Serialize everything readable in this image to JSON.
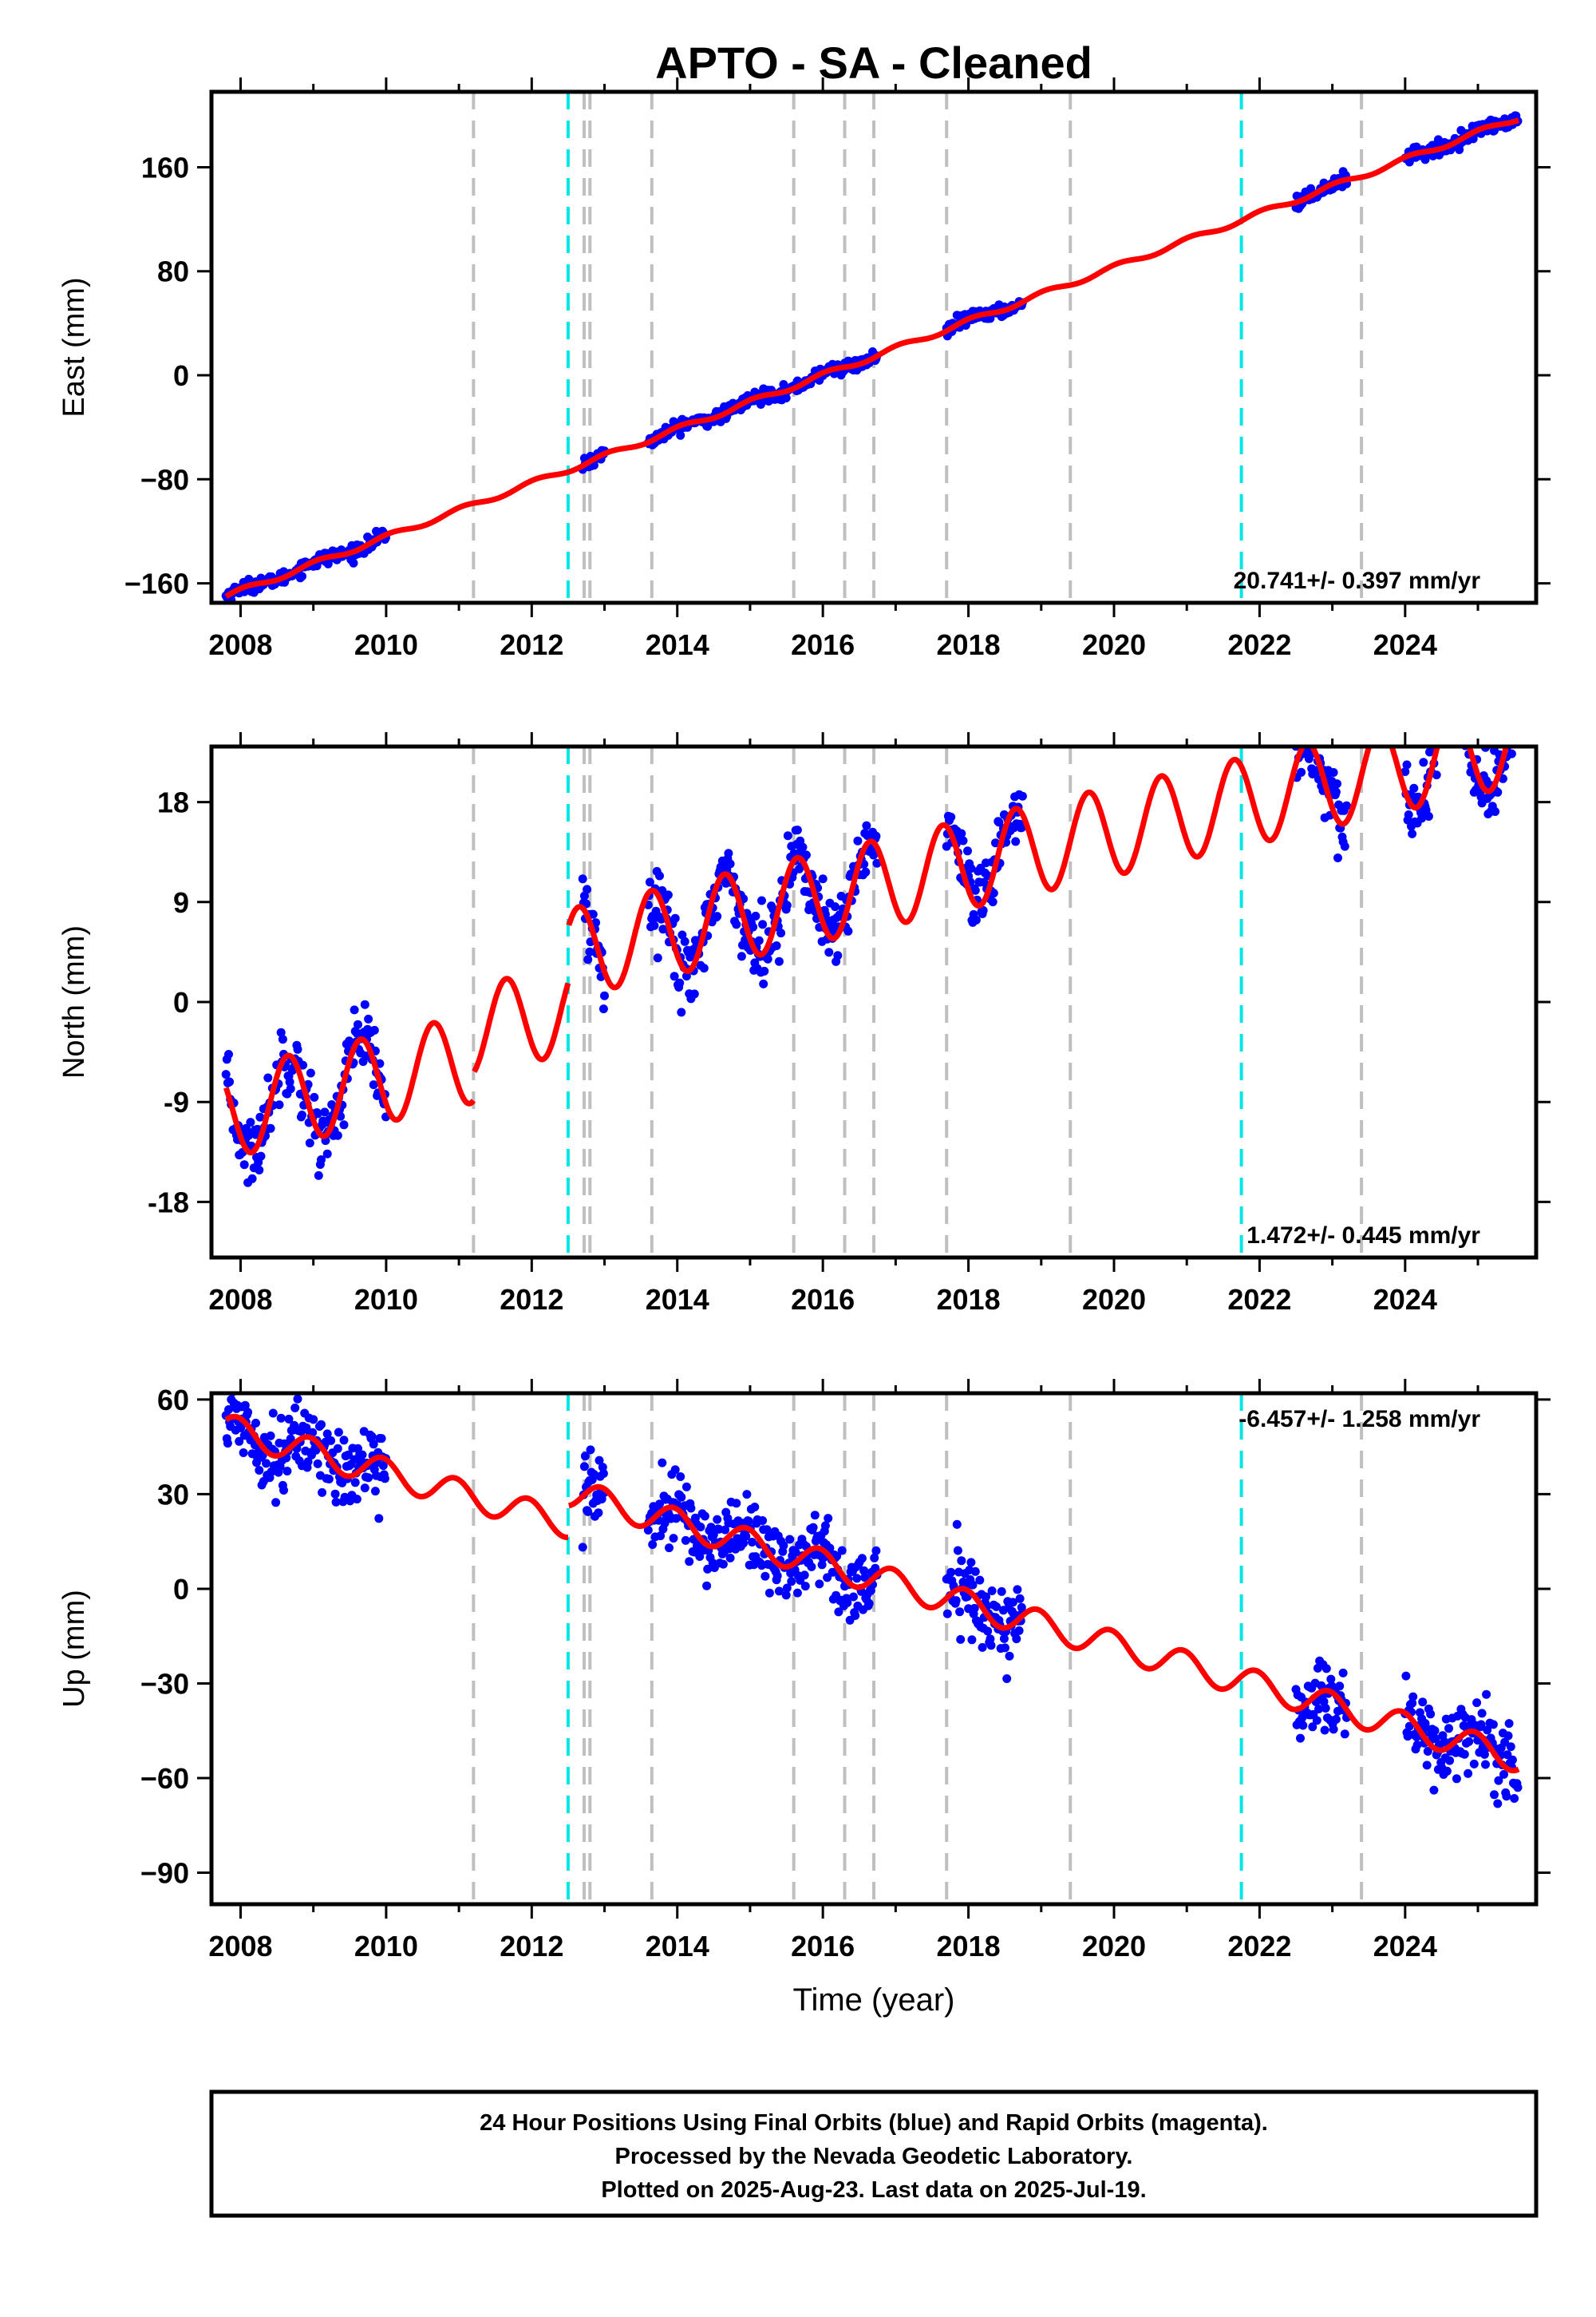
{
  "title": "APTO  - SA - Cleaned",
  "xlabel": "Time (year)",
  "footer": {
    "line1": "24 Hour Positions Using Final Orbits (blue) and Rapid Orbits (magenta).",
    "line2": "Processed by the Nevada Geodetic Laboratory.",
    "line3": "Plotted on 2025-Aug-23. Last data on 2025-Jul-19."
  },
  "colors": {
    "data_points": "#0000ff",
    "model_line": "#ff0000",
    "antenna_change_lines": "#00e5e5",
    "event_lines": "#bfbfbf",
    "frame": "#000000"
  },
  "chart_data": [
    {
      "type": "scatter",
      "name": "east",
      "ylabel": "East (mm)",
      "xlim": [
        2007.6,
        2025.8
      ],
      "ylim": [
        -175,
        218
      ],
      "xticks": [
        2008,
        2010,
        2012,
        2014,
        2016,
        2018,
        2020,
        2022,
        2024
      ],
      "yticks": [
        -160,
        -80,
        0,
        80,
        160
      ],
      "ytick_labels": [
        "−160",
        "−80",
        "0",
        "80",
        "160"
      ],
      "rate_label": "20.741+/- 0.397 mm/yr",
      "rate_position": "bottom-right",
      "cyan_lines": [
        2012.5,
        2021.75
      ],
      "gray_lines": [
        2011.2,
        2012.72,
        2012.8,
        2013.65,
        2015.6,
        2016.3,
        2016.7,
        2017.7,
        2019.4,
        2023.4
      ],
      "data_segments": [
        [
          2007.8,
          2010.0
        ],
        [
          2012.7,
          2013.0
        ],
        [
          2013.6,
          2016.75
        ],
        [
          2017.7,
          2018.75
        ],
        [
          2022.5,
          2023.2
        ],
        [
          2024.0,
          2025.55
        ]
      ],
      "model": {
        "t0": 2016.0,
        "v0": 0.0,
        "trend": 20.741,
        "annual_amp": 2.0,
        "annual_phase": 0.2,
        "offsets": []
      },
      "noise": 2.5
    },
    {
      "type": "scatter",
      "name": "north",
      "ylabel": "North (mm)",
      "xlim": [
        2007.6,
        2025.8
      ],
      "ylim": [
        -23,
        23
      ],
      "xticks": [
        2008,
        2010,
        2012,
        2014,
        2016,
        2018,
        2020,
        2022,
        2024
      ],
      "yticks": [
        -18,
        -9,
        0,
        9,
        18
      ],
      "ytick_labels": [
        "-18",
        "-9",
        "0",
        "9",
        "18"
      ],
      "rate_label": "1.472+/- 0.445 mm/yr",
      "rate_position": "bottom-right",
      "cyan_lines": [
        2012.5,
        2021.75
      ],
      "gray_lines": [
        2011.2,
        2012.72,
        2012.8,
        2013.65,
        2015.6,
        2016.3,
        2016.7,
        2017.7,
        2019.4,
        2023.4
      ],
      "data_segments": [
        [
          2007.8,
          2010.0
        ],
        [
          2012.7,
          2013.0
        ],
        [
          2013.6,
          2016.75
        ],
        [
          2017.7,
          2018.75
        ],
        [
          2022.5,
          2023.2
        ],
        [
          2024.0,
          2025.55
        ]
      ],
      "model": {
        "t0": 2016.0,
        "v0": 2.0,
        "trend": 1.472,
        "annual_amp": 4.0,
        "annual_phase": 0.6,
        "offsets": [
          [
            2011.2,
            2.5
          ],
          [
            2012.5,
            5.0
          ]
        ]
      },
      "noise": 1.6
    },
    {
      "type": "scatter",
      "name": "up",
      "ylabel": "Up (mm)",
      "xlim": [
        2007.6,
        2025.8
      ],
      "ylim": [
        -100,
        62
      ],
      "xticks": [
        2008,
        2010,
        2012,
        2014,
        2016,
        2018,
        2020,
        2022,
        2024
      ],
      "yticks": [
        -90,
        -60,
        -30,
        0,
        30,
        60
      ],
      "ytick_labels": [
        "−90",
        "−60",
        "−30",
        "0",
        "30",
        "60"
      ],
      "rate_label": "-6.457+/- 1.258 mm/yr",
      "rate_position": "top-right",
      "cyan_lines": [
        2012.5,
        2021.75
      ],
      "gray_lines": [
        2011.2,
        2012.72,
        2012.8,
        2013.65,
        2015.6,
        2016.3,
        2016.7,
        2017.7,
        2019.4,
        2023.4
      ],
      "data_segments": [
        [
          2007.8,
          2010.0
        ],
        [
          2012.7,
          2013.0
        ],
        [
          2013.6,
          2016.75
        ],
        [
          2017.7,
          2018.75
        ],
        [
          2022.5,
          2023.2
        ],
        [
          2024.0,
          2025.55
        ]
      ],
      "model": {
        "t0": 2016.0,
        "v0": -2.0,
        "trend": -6.457,
        "annual_amp": 4.5,
        "annual_phase": 0.3,
        "offsets": [
          [
            2012.5,
            10.0
          ]
        ]
      },
      "noise": 6.0
    }
  ]
}
